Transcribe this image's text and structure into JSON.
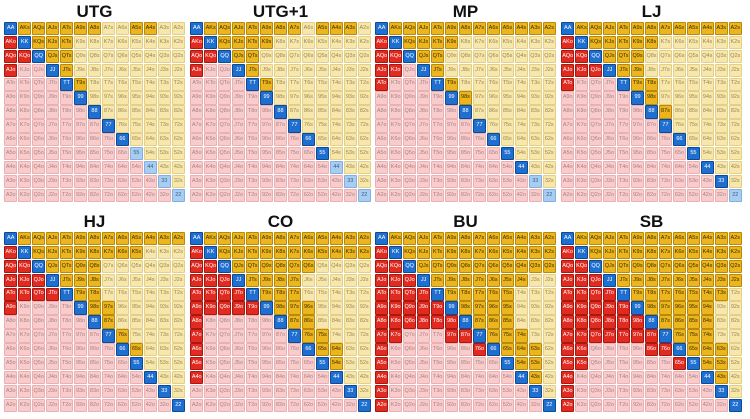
{
  "ranks": [
    "A",
    "K",
    "Q",
    "J",
    "T",
    "9",
    "8",
    "7",
    "6",
    "5",
    "4",
    "3",
    "2"
  ],
  "colors": {
    "pair_raise": "#1f6fd1",
    "pair_fold": "#a9cdf1",
    "suited_raise": "#ecb51d",
    "suited_fold": "#f7e7ac",
    "offsuit_raise": "#e12b21",
    "offsuit_fold": "#f8cccc"
  },
  "charts": [
    {
      "title": "UTG",
      "pairs_min": "6",
      "offsuit": [
        "AK",
        "AQ",
        "AJ",
        "KQ"
      ],
      "suited": [
        "AK",
        "AQ",
        "AJ",
        "AT",
        "A9",
        "A8",
        "A5",
        "A4",
        "KQ",
        "KJ",
        "KT",
        "QJ",
        "QT",
        "JT",
        "T9"
      ]
    },
    {
      "title": "UTG+1",
      "pairs_min": "5",
      "offsuit": [
        "AK",
        "AQ",
        "AJ",
        "KQ"
      ],
      "suited": [
        "AK",
        "AQ",
        "AJ",
        "AT",
        "A9",
        "A8",
        "A7",
        "A5",
        "A4",
        "A3",
        "KQ",
        "KJ",
        "KT",
        "K9",
        "QJ",
        "QT",
        "JT",
        "T9"
      ]
    },
    {
      "title": "MP",
      "pairs_min": "4",
      "offsuit": [
        "AK",
        "AQ",
        "AJ",
        "AT",
        "KQ",
        "KJ"
      ],
      "suited": [
        "AK",
        "AQ",
        "AJ",
        "AT",
        "A9",
        "A8",
        "A7",
        "A6",
        "A5",
        "A4",
        "A3",
        "A2",
        "KQ",
        "KJ",
        "KT",
        "K9",
        "QJ",
        "QT",
        "JT",
        "T9",
        "98"
      ]
    },
    {
      "title": "LJ",
      "pairs_min": "3",
      "offsuit": [
        "AK",
        "AQ",
        "AJ",
        "AT",
        "KQ",
        "KJ",
        "QJ"
      ],
      "suited": [
        "AK",
        "AQ",
        "AJ",
        "AT",
        "A9",
        "A8",
        "A7",
        "A6",
        "A5",
        "A4",
        "A3",
        "A2",
        "KQ",
        "KJ",
        "KT",
        "K9",
        "K8",
        "QJ",
        "QT",
        "Q9",
        "JT",
        "J9",
        "T9",
        "T8",
        "98",
        "87"
      ]
    },
    {
      "title": "HJ",
      "pairs_min": "2",
      "offsuit": [
        "AK",
        "AQ",
        "AJ",
        "AT",
        "A9",
        "KQ",
        "KJ",
        "KT",
        "QJ",
        "QT",
        "JT"
      ],
      "suited": [
        "AK",
        "AQ",
        "AJ",
        "AT",
        "A9",
        "A8",
        "A7",
        "A6",
        "A5",
        "A4",
        "A3",
        "A2",
        "KQ",
        "KJ",
        "KT",
        "K9",
        "K8",
        "K7",
        "K6",
        "K5",
        "QJ",
        "QT",
        "Q9",
        "Q8",
        "JT",
        "J9",
        "J8",
        "T9",
        "T8",
        "98",
        "97",
        "87",
        "76",
        "65"
      ]
    },
    {
      "title": "CO",
      "pairs_min": "2",
      "offsuit": [
        "AK",
        "AQ",
        "AJ",
        "AT",
        "A9",
        "A8",
        "A7",
        "A6",
        "A5",
        "A4",
        "KQ",
        "KJ",
        "KT",
        "K9",
        "QJ",
        "QT",
        "Q9",
        "JT",
        "J9",
        "T9"
      ],
      "suited": [
        "AK",
        "AQ",
        "AJ",
        "AT",
        "A9",
        "A8",
        "A7",
        "A6",
        "A5",
        "A4",
        "A3",
        "A2",
        "KQ",
        "KJ",
        "KT",
        "K9",
        "K8",
        "K7",
        "K6",
        "K5",
        "K4",
        "K3",
        "K2",
        "QJ",
        "QT",
        "Q9",
        "Q8",
        "Q7",
        "Q6",
        "JT",
        "J9",
        "J8",
        "J7",
        "T9",
        "T8",
        "T7",
        "98",
        "97",
        "96",
        "87",
        "86",
        "76",
        "75",
        "65",
        "64",
        "54"
      ]
    },
    {
      "title": "BU",
      "pairs_min": "2",
      "offsuit": [
        "AK",
        "AQ",
        "AJ",
        "AT",
        "A9",
        "A8",
        "A7",
        "A6",
        "A5",
        "A4",
        "A3",
        "A2",
        "KQ",
        "KJ",
        "KT",
        "K9",
        "K8",
        "K7",
        "QJ",
        "QT",
        "Q9",
        "Q8",
        "JT",
        "J9",
        "J8",
        "T9",
        "T8",
        "98",
        "97",
        "87",
        "76"
      ],
      "suited": [
        "AK",
        "AQ",
        "AJ",
        "AT",
        "A9",
        "A8",
        "A7",
        "A6",
        "A5",
        "A4",
        "A3",
        "A2",
        "KQ",
        "KJ",
        "KT",
        "K9",
        "K8",
        "K7",
        "K6",
        "K5",
        "K4",
        "K3",
        "K2",
        "QJ",
        "QT",
        "Q9",
        "Q8",
        "Q7",
        "Q6",
        "Q5",
        "Q4",
        "Q3",
        "Q2",
        "JT",
        "J9",
        "J8",
        "J7",
        "J6",
        "J5",
        "J4",
        "T9",
        "T8",
        "T7",
        "T6",
        "T5",
        "98",
        "97",
        "96",
        "95",
        "87",
        "86",
        "85",
        "76",
        "75",
        "74",
        "65",
        "64",
        "63",
        "54",
        "53",
        "43"
      ]
    },
    {
      "title": "SB",
      "pairs_min": "2",
      "offsuit": [
        "AK",
        "AQ",
        "AJ",
        "AT",
        "A9",
        "A8",
        "A7",
        "A6",
        "A5",
        "A4",
        "A3",
        "A2",
        "KQ",
        "KJ",
        "KT",
        "K9",
        "K8",
        "K7",
        "K6",
        "K5",
        "QJ",
        "QT",
        "Q9",
        "Q8",
        "Q7",
        "JT",
        "J9",
        "J8",
        "J7",
        "T9",
        "T8",
        "T7",
        "98",
        "97",
        "87",
        "86",
        "76",
        "65"
      ],
      "suited": [
        "AK",
        "AQ",
        "AJ",
        "AT",
        "A9",
        "A8",
        "A7",
        "A6",
        "A5",
        "A4",
        "A3",
        "A2",
        "KQ",
        "KJ",
        "KT",
        "K9",
        "K8",
        "K7",
        "K6",
        "K5",
        "K4",
        "K3",
        "K2",
        "QJ",
        "QT",
        "Q9",
        "Q8",
        "Q7",
        "Q6",
        "Q5",
        "Q4",
        "Q3",
        "Q2",
        "JT",
        "J9",
        "J8",
        "J7",
        "J6",
        "J5",
        "J4",
        "J3",
        "J2",
        "T9",
        "T8",
        "T7",
        "T6",
        "T5",
        "T4",
        "T3",
        "98",
        "97",
        "96",
        "95",
        "94",
        "87",
        "86",
        "85",
        "84",
        "76",
        "75",
        "74",
        "65",
        "64",
        "63",
        "54",
        "53",
        "43"
      ]
    }
  ]
}
